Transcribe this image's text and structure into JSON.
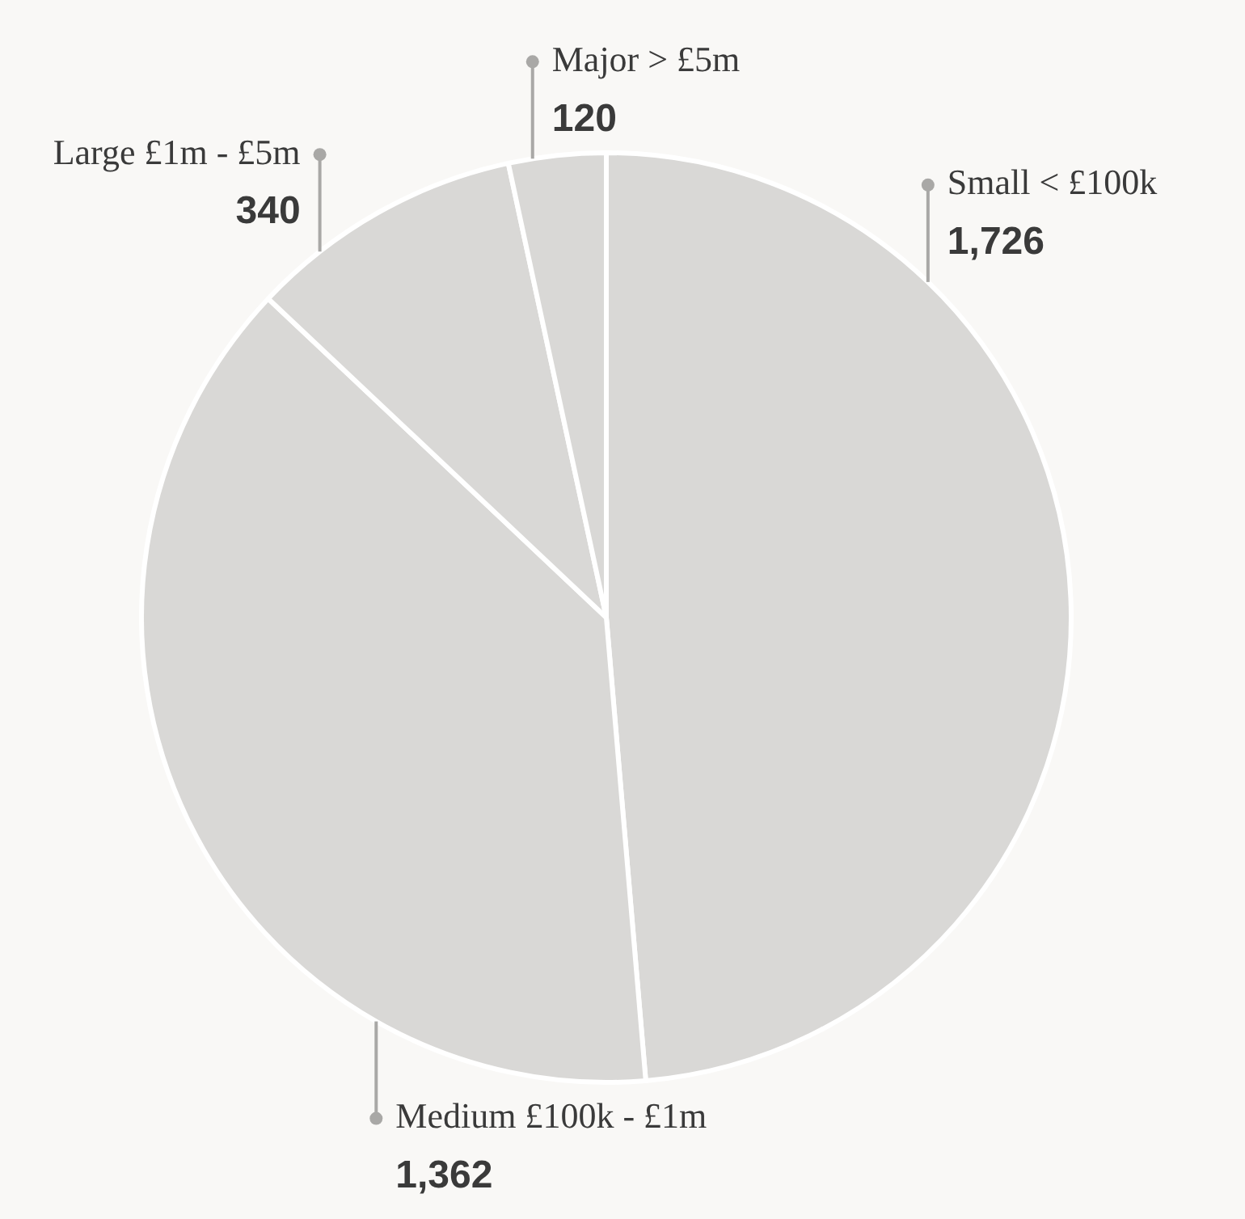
{
  "chart_data": {
    "type": "pie",
    "categories": [
      "Small < £100k",
      "Medium £100k - £1m",
      "Large £1m - £5m",
      "Major > £5m"
    ],
    "values": [
      1726,
      1362,
      340,
      120
    ],
    "value_labels": [
      "1,726",
      "1,362",
      "340",
      "120"
    ],
    "colors": [
      "#d9d8d6",
      "#d9d8d6",
      "#d9d8d6",
      "#d9d8d6"
    ]
  }
}
